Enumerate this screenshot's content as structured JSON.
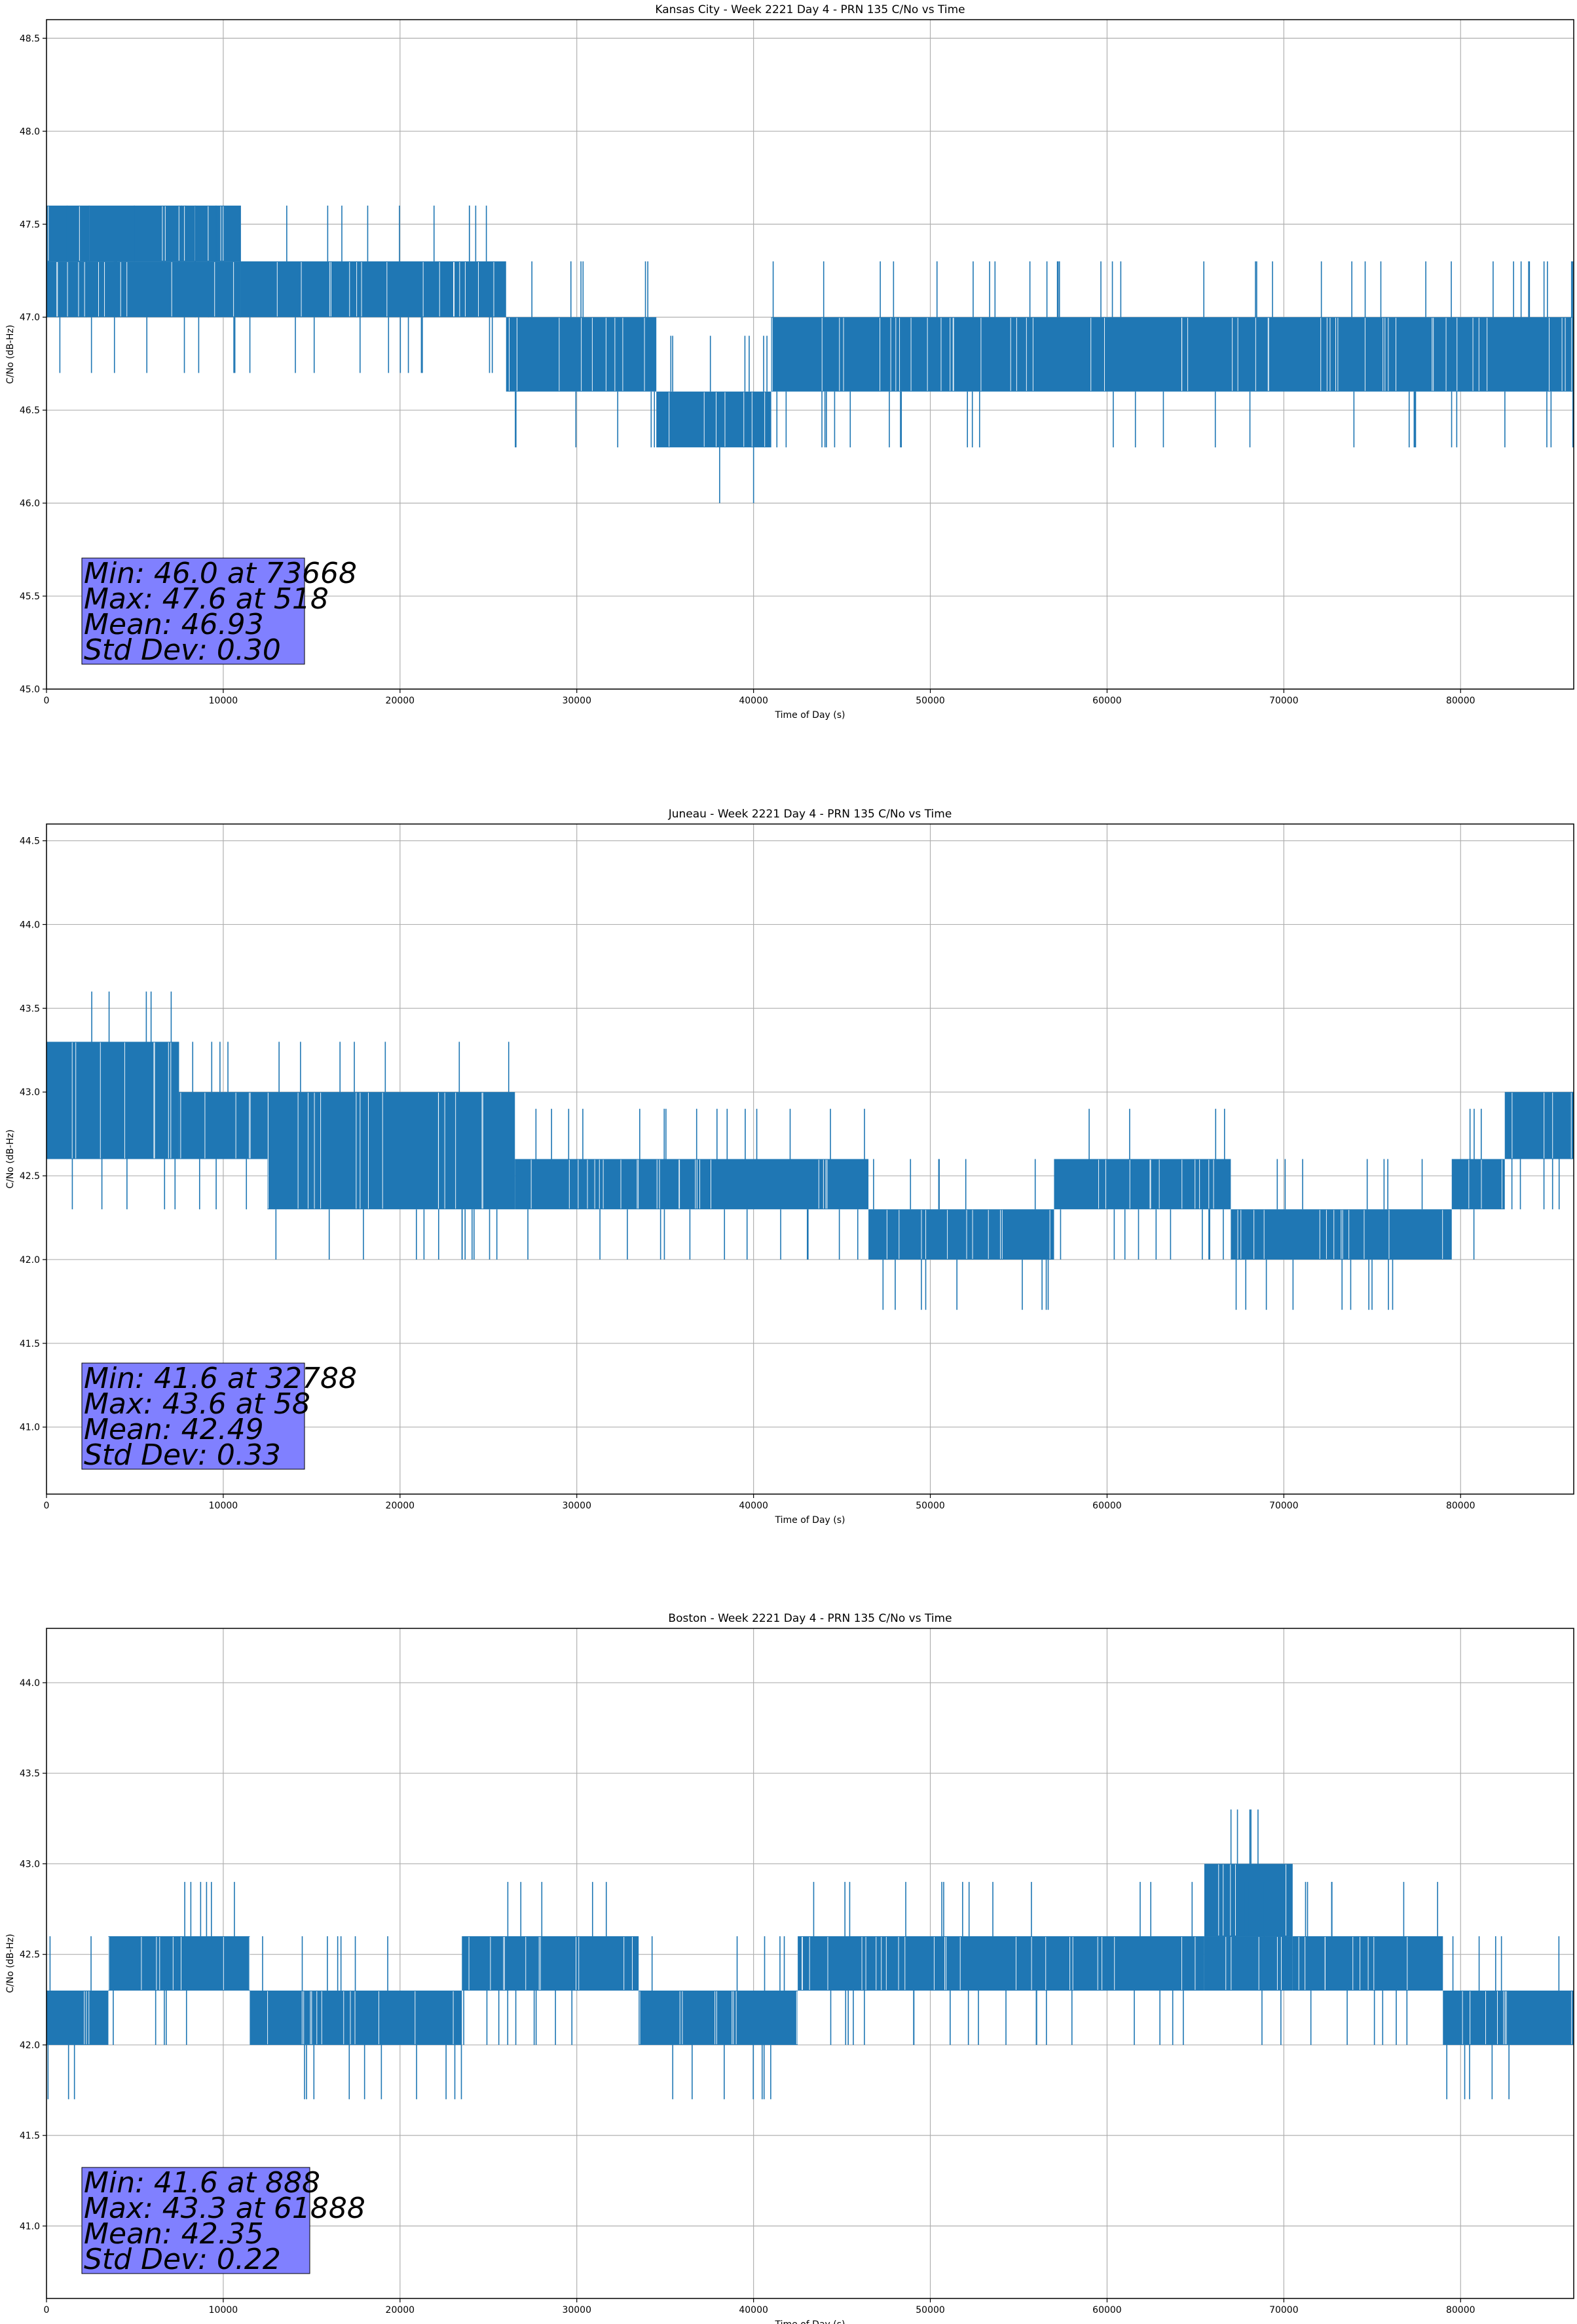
{
  "figure": {
    "background": "#ffffff"
  },
  "colors": {
    "series": "#1f77b4",
    "grid": "#b0b0b0",
    "stats_box": "#8080ff",
    "axes": "#000000"
  },
  "chart_data": [
    {
      "type": "line",
      "title": "Kansas City - Week 2221 Day 4 - PRN 135 C/No vs Time",
      "xlabel": "Time of Day (s)",
      "ylabel": "C/No (dB-Hz)",
      "xlim": [
        0,
        86400
      ],
      "ylim": [
        45.0,
        48.6
      ],
      "xticks": [
        0,
        10000,
        20000,
        30000,
        40000,
        50000,
        60000,
        70000,
        80000
      ],
      "yticks": [
        45.0,
        45.5,
        46.0,
        46.5,
        47.0,
        47.5,
        48.0,
        48.5
      ],
      "ytick_labels": [
        "45.0",
        "45.5",
        "46.0",
        "46.5",
        "47.0",
        "47.5",
        "48.0",
        "48.5"
      ],
      "grid": true,
      "series_name": "C/No",
      "bands": [
        {
          "x0": 0,
          "x1": 11000,
          "lo": 47.3,
          "hi": 47.6
        },
        {
          "x0": 0,
          "x1": 11000,
          "lo": 47.0,
          "hi": 47.3
        },
        {
          "x0": 11000,
          "x1": 26000,
          "lo": 47.0,
          "hi": 47.3
        },
        {
          "x0": 26000,
          "x1": 34500,
          "lo": 46.6,
          "hi": 47.0
        },
        {
          "x0": 34500,
          "x1": 41000,
          "lo": 46.3,
          "hi": 46.6
        },
        {
          "x0": 41000,
          "x1": 86400,
          "lo": 46.6,
          "hi": 47.0
        }
      ],
      "stats": {
        "min": "Min: 46.0 at 73668",
        "max": "Max: 47.6 at 518",
        "mean": "Mean: 46.93",
        "std": "Std Dev: 0.30"
      },
      "min_value": 46.0,
      "max_value": 47.6,
      "step": 0.3
    },
    {
      "type": "line",
      "title": "Juneau - Week 2221 Day 4 - PRN 135 C/No vs Time",
      "xlabel": "Time of Day (s)",
      "ylabel": "C/No (dB-Hz)",
      "xlim": [
        0,
        86400
      ],
      "ylim": [
        40.6,
        44.6
      ],
      "xticks": [
        0,
        10000,
        20000,
        30000,
        40000,
        50000,
        60000,
        70000,
        80000
      ],
      "yticks": [
        41.0,
        41.5,
        42.0,
        42.5,
        43.0,
        43.5,
        44.0,
        44.5
      ],
      "ytick_labels": [
        "41.0",
        "41.5",
        "42.0",
        "42.5",
        "43.0",
        "43.5",
        "44.0",
        "44.5"
      ],
      "grid": true,
      "series_name": "C/No",
      "bands": [
        {
          "x0": 0,
          "x1": 7500,
          "lo": 42.6,
          "hi": 43.3
        },
        {
          "x0": 7500,
          "x1": 12500,
          "lo": 42.6,
          "hi": 43.0
        },
        {
          "x0": 12500,
          "x1": 26500,
          "lo": 42.3,
          "hi": 43.0
        },
        {
          "x0": 26500,
          "x1": 46500,
          "lo": 42.3,
          "hi": 42.6
        },
        {
          "x0": 46500,
          "x1": 57000,
          "lo": 42.0,
          "hi": 42.3
        },
        {
          "x0": 57000,
          "x1": 67000,
          "lo": 42.3,
          "hi": 42.6
        },
        {
          "x0": 67000,
          "x1": 79500,
          "lo": 42.0,
          "hi": 42.3
        },
        {
          "x0": 79500,
          "x1": 82500,
          "lo": 42.3,
          "hi": 42.6
        },
        {
          "x0": 82500,
          "x1": 86400,
          "lo": 42.6,
          "hi": 43.0
        }
      ],
      "stats": {
        "min": "Min: 41.6 at 32788",
        "max": "Max: 43.6 at 58",
        "mean": "Mean: 42.49",
        "std": "Std Dev: 0.33"
      },
      "min_value": 41.6,
      "max_value": 43.6,
      "step": 0.3
    },
    {
      "type": "line",
      "title": "Boston - Week 2221 Day 4 - PRN 135 C/No vs Time",
      "xlabel": "Time of Day (s)",
      "ylabel": "C/No (dB-Hz)",
      "xlim": [
        0,
        86400
      ],
      "ylim": [
        40.6,
        44.3
      ],
      "xticks": [
        0,
        10000,
        20000,
        30000,
        40000,
        50000,
        60000,
        70000,
        80000
      ],
      "yticks": [
        41.0,
        41.5,
        42.0,
        42.5,
        43.0,
        43.5,
        44.0
      ],
      "ytick_labels": [
        "41.0",
        "41.5",
        "42.0",
        "42.5",
        "43.0",
        "43.5",
        "44.0"
      ],
      "grid": true,
      "series_name": "C/No",
      "bands": [
        {
          "x0": 0,
          "x1": 3500,
          "lo": 42.0,
          "hi": 42.3
        },
        {
          "x0": 3500,
          "x1": 11500,
          "lo": 42.3,
          "hi": 42.6
        },
        {
          "x0": 11500,
          "x1": 23500,
          "lo": 42.0,
          "hi": 42.3
        },
        {
          "x0": 23500,
          "x1": 33500,
          "lo": 42.3,
          "hi": 42.6
        },
        {
          "x0": 33500,
          "x1": 42500,
          "lo": 42.0,
          "hi": 42.3
        },
        {
          "x0": 42500,
          "x1": 65500,
          "lo": 42.3,
          "hi": 42.6
        },
        {
          "x0": 65500,
          "x1": 70500,
          "lo": 42.6,
          "hi": 43.0
        },
        {
          "x0": 65500,
          "x1": 70500,
          "lo": 42.3,
          "hi": 42.6
        },
        {
          "x0": 70500,
          "x1": 79000,
          "lo": 42.3,
          "hi": 42.6
        },
        {
          "x0": 79000,
          "x1": 86400,
          "lo": 42.0,
          "hi": 42.3
        }
      ],
      "stats": {
        "min": "Min: 41.6 at 888",
        "max": "Max: 43.3 at 61888",
        "mean": "Mean: 42.35",
        "std": "Std Dev: 0.22"
      },
      "min_value": 41.6,
      "max_value": 43.3,
      "step": 0.3
    }
  ]
}
